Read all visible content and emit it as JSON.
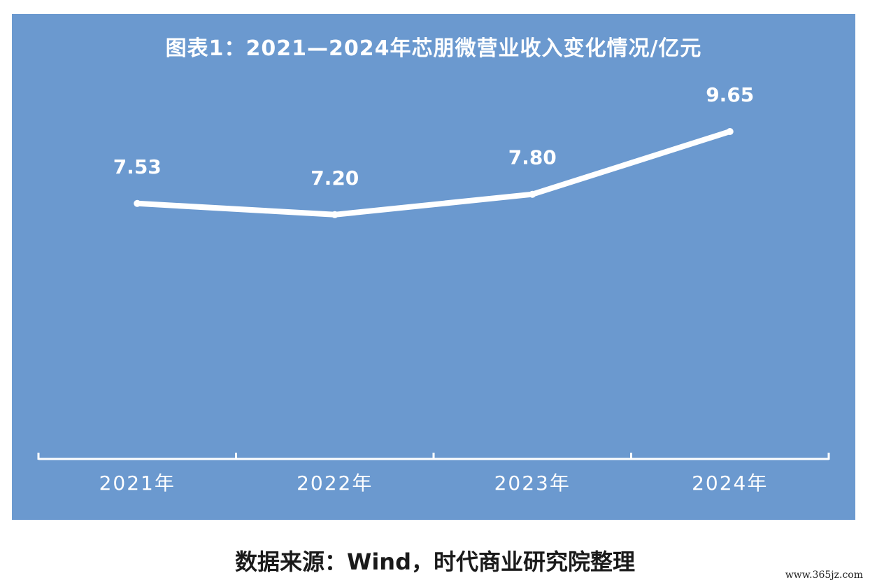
{
  "source_note": "数据来源：Wind，时代商业研究院整理",
  "watermark": "www.365jz.com",
  "colors": {
    "panel": "#6b99cf",
    "line": "#ffffff",
    "text": "#ffffff"
  },
  "chart_data": {
    "type": "line",
    "title": "图表1：2021—2024年芯朋微营业收入变化情况/亿元",
    "xlabel": "",
    "ylabel": "",
    "categories": [
      "2021年",
      "2022年",
      "2023年",
      "2024年"
    ],
    "values": [
      7.53,
      7.2,
      7.8,
      9.65
    ],
    "value_labels": [
      "7.53",
      "7.20",
      "7.80",
      "9.65"
    ],
    "ylim": [
      0,
      11
    ],
    "grid": false,
    "drop_lines": true
  }
}
